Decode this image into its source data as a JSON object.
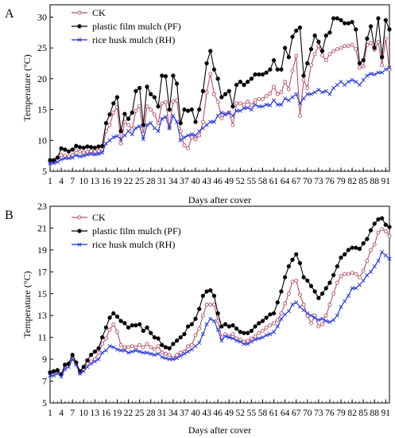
{
  "chart_data": [
    {
      "panel_label": "A",
      "type": "line",
      "xlabel": "Days after cover",
      "ylabel": "Temperature (°C)",
      "ylim": [
        5,
        32
      ],
      "xlim": [
        1,
        92
      ],
      "yticks": [
        5,
        10,
        15,
        20,
        25,
        30
      ],
      "xticks": [
        1,
        4,
        7,
        10,
        13,
        16,
        19,
        22,
        25,
        28,
        31,
        34,
        37,
        40,
        43,
        46,
        49,
        52,
        55,
        58,
        61,
        64,
        67,
        70,
        73,
        76,
        79,
        82,
        85,
        88,
        91
      ],
      "legend_position": "top-left",
      "series": [
        {
          "name": "CK",
          "color": "#b5506a",
          "marker": "open-circle",
          "values": [
            6.5,
            6.6,
            6.8,
            7.6,
            7.5,
            7.4,
            7.6,
            8.4,
            8.2,
            8.0,
            8.2,
            8.3,
            8.2,
            8.3,
            8.5,
            11.5,
            12.5,
            14.5,
            15.4,
            9.5,
            13.0,
            12.5,
            11.8,
            14.8,
            15.6,
            11.0,
            15.5,
            15.0,
            14.2,
            12.8,
            16.0,
            16.2,
            12.0,
            16.3,
            16.5,
            11.5,
            9.2,
            8.7,
            10.5,
            10.2,
            10.8,
            13.0,
            17.8,
            20.8,
            17.5,
            16.3,
            13.6,
            14.3,
            14.5,
            12.5,
            16.0,
            16.0,
            15.8,
            16.3,
            15.7,
            16.5,
            16.7,
            16.7,
            17.2,
            17.6,
            18.7,
            17.5,
            17.8,
            19.5,
            18.3,
            21.3,
            23.7,
            14.0,
            19.8,
            18.5,
            22.2,
            24.0,
            25.3,
            23.8,
            23.0,
            24.0,
            24.5,
            24.8,
            25.0,
            25.3,
            25.3,
            25.5,
            24.8,
            21.8,
            22.0,
            25.5,
            25.8,
            24.7,
            26.0,
            22.2,
            26.5,
            21.5
          ]
        },
        {
          "name": "plastic film mulch (PF)",
          "color": "#000000",
          "marker": "filled-circle",
          "values": [
            6.8,
            6.8,
            7.2,
            8.7,
            8.5,
            8.2,
            8.5,
            9.1,
            8.9,
            8.8,
            9.0,
            8.9,
            8.8,
            9.0,
            9.1,
            12.8,
            14.2,
            16.0,
            17.0,
            11.5,
            14.3,
            13.5,
            14.5,
            18.0,
            18.5,
            12.5,
            18.7,
            17.5,
            17.0,
            15.5,
            20.5,
            20.4,
            15.0,
            20.5,
            19.2,
            12.8,
            15.0,
            14.8,
            15.0,
            13.0,
            15.0,
            18.0,
            22.5,
            24.5,
            21.5,
            20.0,
            17.0,
            17.5,
            18.0,
            15.5,
            19.0,
            19.5,
            19.0,
            19.5,
            20.0,
            20.7,
            20.7,
            20.7,
            21.0,
            21.5,
            23.0,
            21.5,
            21.5,
            25.0,
            23.5,
            26.8,
            27.8,
            28.3,
            20.5,
            22.5,
            24.8,
            27.0,
            26.0,
            24.5,
            27.0,
            27.5,
            29.8,
            29.8,
            29.5,
            29.0,
            29.0,
            29.2,
            28.0,
            22.5,
            23.0,
            26.5,
            28.5,
            25.0,
            29.8,
            23.5,
            29.5,
            28.0
          ]
        },
        {
          "name": "rice husk mulch (RH)",
          "color": "#1f2fd6",
          "marker": "cross",
          "values": [
            6.3,
            6.3,
            6.5,
            6.9,
            7.1,
            7.1,
            7.2,
            7.6,
            7.4,
            7.5,
            7.7,
            7.8,
            7.7,
            7.8,
            8.0,
            9.5,
            10.0,
            10.5,
            10.7,
            10.2,
            10.8,
            11.5,
            11.0,
            12.0,
            12.3,
            10.2,
            12.5,
            12.8,
            12.0,
            11.5,
            13.5,
            13.8,
            12.0,
            14.0,
            13.0,
            10.0,
            10.5,
            10.8,
            11.0,
            10.8,
            11.5,
            12.0,
            12.5,
            13.0,
            13.0,
            14.0,
            14.5,
            14.2,
            14.5,
            14.0,
            14.8,
            14.8,
            15.2,
            15.3,
            15.0,
            15.8,
            15.5,
            15.5,
            15.8,
            15.7,
            16.5,
            15.8,
            15.8,
            16.8,
            16.5,
            17.0,
            17.5,
            16.0,
            16.8,
            17.5,
            17.5,
            17.8,
            18.2,
            17.8,
            18.0,
            17.5,
            18.5,
            19.0,
            19.5,
            19.0,
            19.5,
            19.8,
            19.5,
            19.0,
            19.8,
            20.5,
            20.8,
            20.7,
            21.0,
            21.0,
            21.5,
            21.8
          ]
        }
      ]
    },
    {
      "panel_label": "B",
      "type": "line",
      "xlabel": "Days  after cover",
      "ylabel": "Temperature (°C)",
      "ylim": [
        5,
        23
      ],
      "xlim": [
        1,
        92
      ],
      "yticks": [
        5,
        7,
        9,
        11,
        13,
        15,
        17,
        19,
        21,
        23
      ],
      "xticks": [
        1,
        4,
        7,
        10,
        13,
        16,
        19,
        22,
        25,
        28,
        31,
        34,
        37,
        40,
        43,
        46,
        49,
        52,
        55,
        58,
        61,
        64,
        67,
        70,
        73,
        76,
        79,
        82,
        85,
        88,
        91
      ],
      "legend_position": "top-left",
      "series": [
        {
          "name": "CK",
          "color": "#b5506a",
          "marker": "open-circle",
          "values": [
            7.8,
            7.8,
            7.9,
            7.6,
            8.4,
            8.6,
            9.3,
            8.6,
            7.7,
            8.1,
            8.6,
            8.8,
            9.0,
            9.6,
            10.4,
            10.9,
            11.7,
            12.2,
            11.5,
            10.3,
            10.1,
            10.1,
            10.2,
            10.1,
            10.3,
            10.1,
            10.4,
            10.1,
            9.9,
            10.2,
            9.6,
            9.5,
            9.4,
            9.1,
            9.4,
            9.6,
            9.7,
            10.2,
            10.3,
            11.2,
            11.8,
            13.0,
            14.0,
            14.0,
            14.0,
            12.5,
            11.0,
            11.3,
            11.1,
            11.3,
            10.9,
            10.8,
            10.6,
            10.7,
            10.9,
            11.1,
            11.4,
            11.6,
            11.9,
            12.1,
            12.3,
            12.6,
            13.2,
            14.1,
            15.0,
            16.1,
            16.2,
            14.9,
            14.0,
            13.0,
            12.3,
            13.0,
            12.0,
            12.2,
            13.0,
            14.0,
            15.0,
            16.0,
            16.6,
            16.8,
            16.8,
            16.9,
            16.8,
            16.5,
            17.1,
            18.0,
            19.0,
            19.5,
            20.6,
            20.9,
            20.7,
            20.3
          ]
        },
        {
          "name": "plastic film mulch (PF)",
          "color": "#000000",
          "marker": "filled-circle",
          "values": [
            7.8,
            7.9,
            8.0,
            7.6,
            8.5,
            8.6,
            9.4,
            8.7,
            7.9,
            8.3,
            8.9,
            9.4,
            9.7,
            10.0,
            11.0,
            11.9,
            12.8,
            13.2,
            12.9,
            12.5,
            12.3,
            11.9,
            12.1,
            12.1,
            12.2,
            11.6,
            11.9,
            11.4,
            11.0,
            10.9,
            10.3,
            10.1,
            10.0,
            10.4,
            10.7,
            11.0,
            11.3,
            12.0,
            12.2,
            12.7,
            13.6,
            14.8,
            15.2,
            15.3,
            14.8,
            13.2,
            12.0,
            12.2,
            12.0,
            12.1,
            11.8,
            11.5,
            11.4,
            11.4,
            11.6,
            12.0,
            12.3,
            12.5,
            12.8,
            13.1,
            13.2,
            14.2,
            15.2,
            16.5,
            17.5,
            18.1,
            18.6,
            17.8,
            16.5,
            16.2,
            15.7,
            15.2,
            14.6,
            15.0,
            15.5,
            16.0,
            16.7,
            17.5,
            18.3,
            18.6,
            19.0,
            19.2,
            19.2,
            19.1,
            19.6,
            20.0,
            20.8,
            21.4,
            21.8,
            21.9,
            21.3,
            21.1
          ]
        },
        {
          "name": "rice husk mulch (RH)",
          "color": "#1f2fd6",
          "marker": "cross",
          "values": [
            7.5,
            7.5,
            7.7,
            7.4,
            8.1,
            8.3,
            9.0,
            8.5,
            7.7,
            7.9,
            8.3,
            8.6,
            8.8,
            9.0,
            9.6,
            9.8,
            10.2,
            10.1,
            9.9,
            9.8,
            9.8,
            9.6,
            9.7,
            9.8,
            9.7,
            9.6,
            9.6,
            9.5,
            9.4,
            9.5,
            9.2,
            9.1,
            9.0,
            9.0,
            9.1,
            9.3,
            9.5,
            9.7,
            9.9,
            10.2,
            10.5,
            11.3,
            12.2,
            12.7,
            12.5,
            11.7,
            10.7,
            11.1,
            11.0,
            10.9,
            10.7,
            10.6,
            10.4,
            10.4,
            10.6,
            10.8,
            10.9,
            11.0,
            11.2,
            11.3,
            11.5,
            12.0,
            12.7,
            13.1,
            13.4,
            14.0,
            14.2,
            13.8,
            13.5,
            13.2,
            13.0,
            12.8,
            12.6,
            12.7,
            12.5,
            12.4,
            12.6,
            13.0,
            13.8,
            14.3,
            14.8,
            15.5,
            15.5,
            15.8,
            16.2,
            16.7,
            17.0,
            17.5,
            18.0,
            18.8,
            18.5,
            18.2
          ]
        }
      ]
    }
  ]
}
